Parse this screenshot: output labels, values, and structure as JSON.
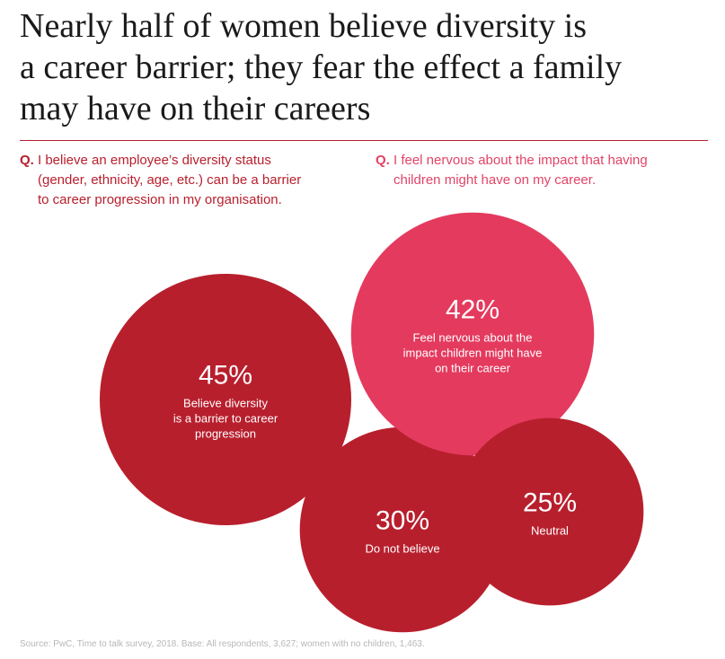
{
  "title_lines": [
    "Nearly half of women believe diversity is",
    "a career barrier; they fear the effect a family",
    "may have on their careers"
  ],
  "questions": [
    {
      "marker": "Q.",
      "lines": [
        "I believe an employee’s diversity status",
        "(gender, ethnicity, age, etc.) can be a barrier",
        "to career progression in my organisation."
      ]
    },
    {
      "marker": "Q.",
      "lines": [
        "I feel nervous about the impact that having",
        "children might have on my career."
      ]
    }
  ],
  "colors": {
    "dark_red": "#b81f2d",
    "pink": "#e43a5e",
    "title": "#1a1a1a",
    "source": "#b7b7b7"
  },
  "chart_data": {
    "type": "bubble",
    "bubbles": [
      {
        "value": 45,
        "value_label": "45%",
        "label_lines": [
          "Believe diversity",
          "is a barrier to career",
          "progression"
        ],
        "group": "diversity",
        "color": "#b81f2d"
      },
      {
        "value": 30,
        "value_label": "30%",
        "label_lines": [
          "Do not believe"
        ],
        "group": "diversity",
        "color": "#b81f2d"
      },
      {
        "value": 42,
        "value_label": "42%",
        "label_lines": [
          "Feel nervous about the",
          "impact children might have",
          "on their career"
        ],
        "group": "children",
        "color": "#e43a5e"
      },
      {
        "value": 25,
        "value_label": "25%",
        "label_lines": [
          "Neutral"
        ],
        "group": "children",
        "color": "#b81f2d"
      }
    ]
  },
  "source": "Source: PwC, Time to talk survey, 2018. Base: All respondents, 3,627; women with no children, 1,463."
}
